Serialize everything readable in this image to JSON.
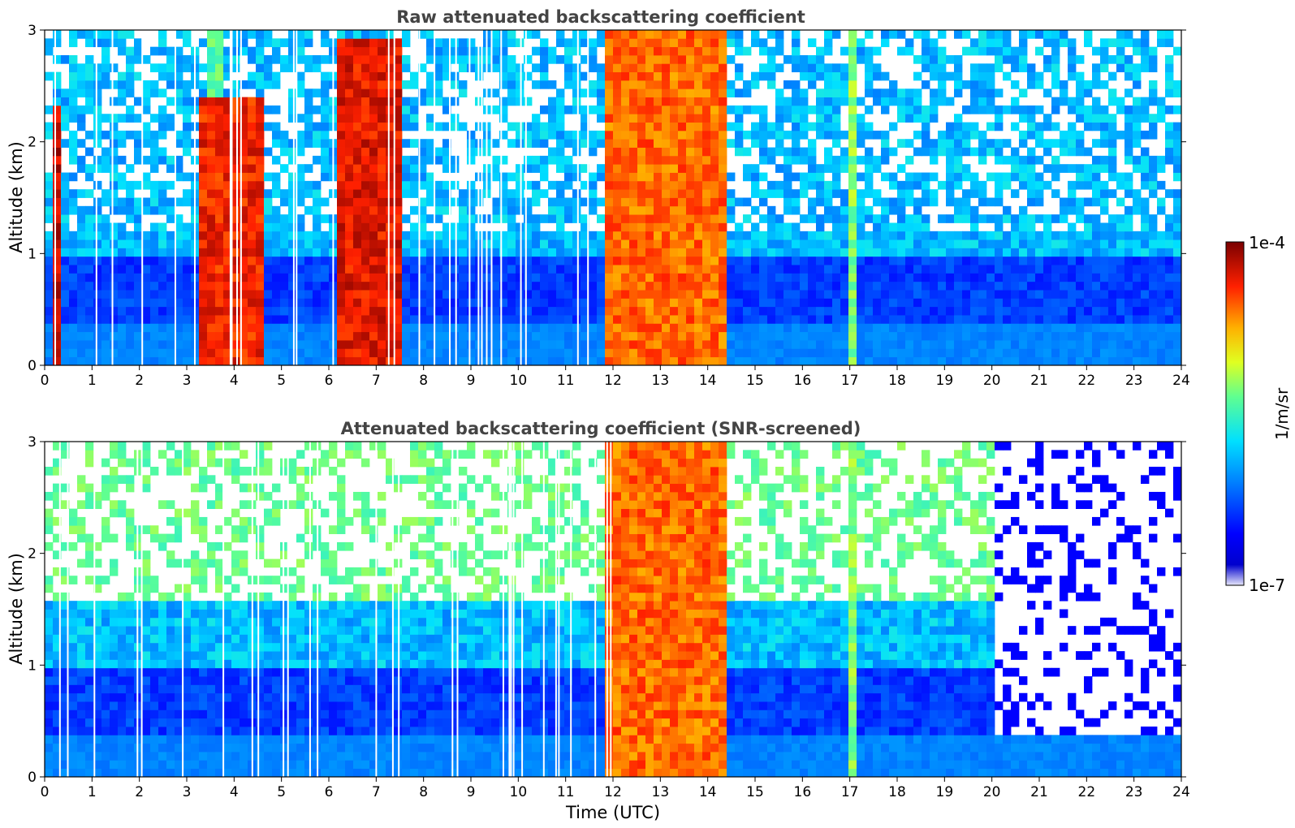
{
  "chart_data": [
    {
      "type": "heatmap",
      "title": "Raw attenuated backscattering coefficient",
      "xlabel": "",
      "ylabel": "Altitude (km)",
      "xlim": [
        0,
        24
      ],
      "ylim": [
        0,
        3
      ],
      "x_ticks": [
        0,
        1,
        2,
        3,
        4,
        5,
        6,
        7,
        8,
        9,
        10,
        11,
        12,
        13,
        14,
        15,
        16,
        17,
        18,
        19,
        20,
        21,
        22,
        23,
        24
      ],
      "y_ticks": [
        0,
        1,
        2,
        3
      ],
      "features": [
        {
          "t_start": 11.85,
          "t_end": 14.4,
          "alt_top": 3.0,
          "level": 0.83
        },
        {
          "t_start": 16.9,
          "t_end": 17.2,
          "alt_top": 3.0,
          "level": 0.6
        },
        {
          "t_start": 3.4,
          "t_end": 3.7,
          "alt_top": 3.0,
          "level": 0.55
        },
        {
          "t_start": 0.1,
          "t_end": 0.35,
          "alt_top": 2.3,
          "level": 0.95
        },
        {
          "t_start": 6.2,
          "t_end": 7.5,
          "alt_top": 2.9,
          "level": 0.92
        },
        {
          "t_start": 3.3,
          "t_end": 4.7,
          "alt_top": 2.4,
          "level": 0.9
        }
      ]
    },
    {
      "type": "heatmap",
      "title": "Attenuated backscattering coefficient (SNR-screened)",
      "xlabel": "Time (UTC)",
      "ylabel": "Altitude (km)",
      "xlim": [
        0,
        24
      ],
      "ylim": [
        0,
        3
      ],
      "x_ticks": [
        0,
        1,
        2,
        3,
        4,
        5,
        6,
        7,
        8,
        9,
        10,
        11,
        12,
        13,
        14,
        15,
        16,
        17,
        18,
        19,
        20,
        21,
        22,
        23,
        24
      ],
      "y_ticks": [
        0,
        1,
        2,
        3
      ],
      "features": [
        {
          "t_start": 11.85,
          "t_end": 14.4,
          "alt_top": 3.0,
          "level": 0.83
        },
        {
          "t_start": 16.9,
          "t_end": 17.2,
          "alt_top": 3.0,
          "level": 0.6
        },
        {
          "t_start": 0.0,
          "t_end": 20.0,
          "alt_top": 1.8,
          "level": 0.18
        },
        {
          "t_start": 20.0,
          "t_end": 24.0,
          "alt_top": 0.35,
          "level": 0.35
        }
      ]
    }
  ],
  "colorbar": {
    "label": "1/m/sr",
    "max_label": "1e-4",
    "min_label": "1e-7",
    "colormap": "jet",
    "scale": "log"
  }
}
